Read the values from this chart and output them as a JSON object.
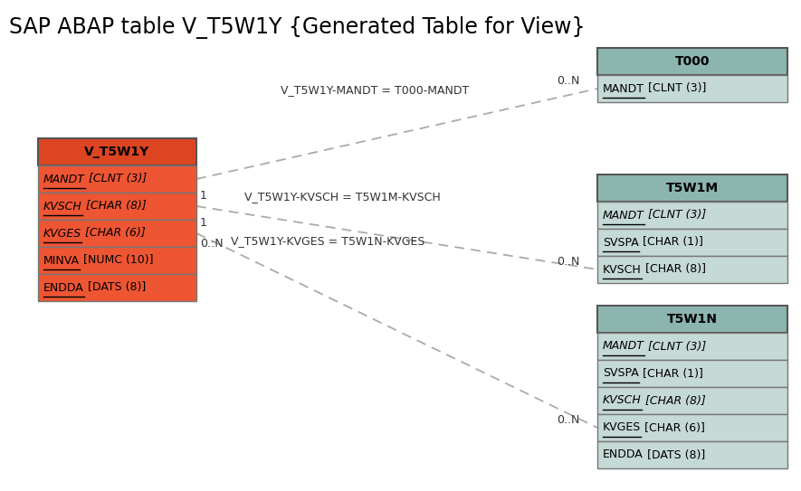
{
  "title": "SAP ABAP table V_T5W1Y {Generated Table for View}",
  "title_fontsize": 17,
  "background_color": "#ffffff",
  "main_table": {
    "name": "V_T5W1Y",
    "header_color": "#dd4422",
    "header_text_color": "#000000",
    "row_color": "#ee5533",
    "row_text_color": "#000000",
    "fields": [
      {
        "text": "MANDT",
        "type": " [CLNT (3)]",
        "italic": true,
        "underline": true
      },
      {
        "text": "KVSCH",
        "type": " [CHAR (8)]",
        "italic": true,
        "underline": true
      },
      {
        "text": "KVGES",
        "type": " [CHAR (6)]",
        "italic": true,
        "underline": true
      },
      {
        "text": "MINVA",
        "type": " [NUMC (10)]",
        "italic": false,
        "underline": true
      },
      {
        "text": "ENDDA",
        "type": " [DATS (8)]",
        "italic": false,
        "underline": true
      }
    ]
  },
  "t000": {
    "name": "T000",
    "header_color": "#8db5b0",
    "header_text_color": "#000000",
    "row_color": "#c5d9d6",
    "row_text_color": "#000000",
    "fields": [
      {
        "text": "MANDT",
        "type": " [CLNT (3)]",
        "italic": false,
        "underline": true
      }
    ]
  },
  "t5w1m": {
    "name": "T5W1M",
    "header_color": "#8db5b0",
    "header_text_color": "#000000",
    "row_color": "#c5d9d6",
    "row_text_color": "#000000",
    "fields": [
      {
        "text": "MANDT",
        "type": " [CLNT (3)]",
        "italic": true,
        "underline": true
      },
      {
        "text": "SVSPA",
        "type": " [CHAR (1)]",
        "italic": false,
        "underline": true
      },
      {
        "text": "KVSCH",
        "type": " [CHAR (8)]",
        "italic": false,
        "underline": true
      }
    ]
  },
  "t5w1n": {
    "name": "T5W1N",
    "header_color": "#8db5b0",
    "header_text_color": "#000000",
    "row_color": "#c5d9d6",
    "row_text_color": "#000000",
    "fields": [
      {
        "text": "MANDT",
        "type": " [CLNT (3)]",
        "italic": true,
        "underline": true
      },
      {
        "text": "SVSPA",
        "type": " [CHAR (1)]",
        "italic": false,
        "underline": true
      },
      {
        "text": "KVSCH",
        "type": " [CHAR (8)]",
        "italic": true,
        "underline": true
      },
      {
        "text": "KVGES",
        "type": " [CHAR (6)]",
        "italic": false,
        "underline": true
      },
      {
        "text": "ENDDA",
        "type": " [DATS (8)]",
        "italic": false,
        "underline": false
      }
    ]
  },
  "line_color": "#aaaaaa",
  "label_color": "#333333",
  "label_fontsize": 9
}
